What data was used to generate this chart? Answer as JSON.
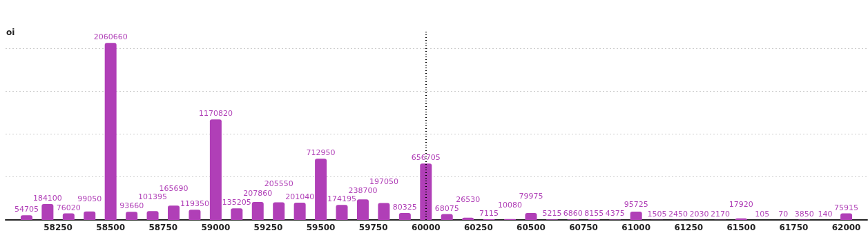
{
  "chart_data": {
    "type": "bar",
    "ylabel": "oi",
    "x": [
      58100,
      58200,
      58300,
      58400,
      58500,
      58600,
      58700,
      58800,
      58900,
      59000,
      59100,
      59200,
      59300,
      59400,
      59500,
      59600,
      59700,
      59800,
      59900,
      60000,
      60100,
      60200,
      60300,
      60400,
      60500,
      60600,
      60700,
      60800,
      60900,
      61000,
      61100,
      61200,
      61300,
      61400,
      61500,
      61600,
      61700,
      61800,
      61900,
      62000
    ],
    "values": [
      54705,
      184100,
      76020,
      99050,
      2060660,
      93660,
      101395,
      165690,
      119350,
      1170820,
      135205,
      207860,
      205550,
      201040,
      712950,
      174195,
      238700,
      197050,
      80325,
      656705,
      68075,
      26530,
      7115,
      10080,
      79975,
      5215,
      6860,
      8155,
      4375,
      95725,
      1505,
      2450,
      2030,
      2170,
      17920,
      105,
      70,
      3850,
      140,
      75915
    ],
    "color": "#b03fb7",
    "data_labels": true,
    "xlim": [
      58000,
      62100
    ],
    "xticks": [
      58250,
      58500,
      58750,
      59000,
      59250,
      59500,
      59750,
      60000,
      60250,
      60500,
      60750,
      61000,
      61250,
      61500,
      61750,
      62000
    ],
    "ylim": [
      0,
      2200000
    ],
    "yticks": [
      0,
      500000,
      1000000,
      1500000,
      2000000
    ],
    "tick_labels": "x",
    "grid": "y",
    "ref_lines": [
      {
        "axis": "x",
        "value": 60000,
        "color": "#000000",
        "line_style": "dotted"
      }
    ]
  }
}
